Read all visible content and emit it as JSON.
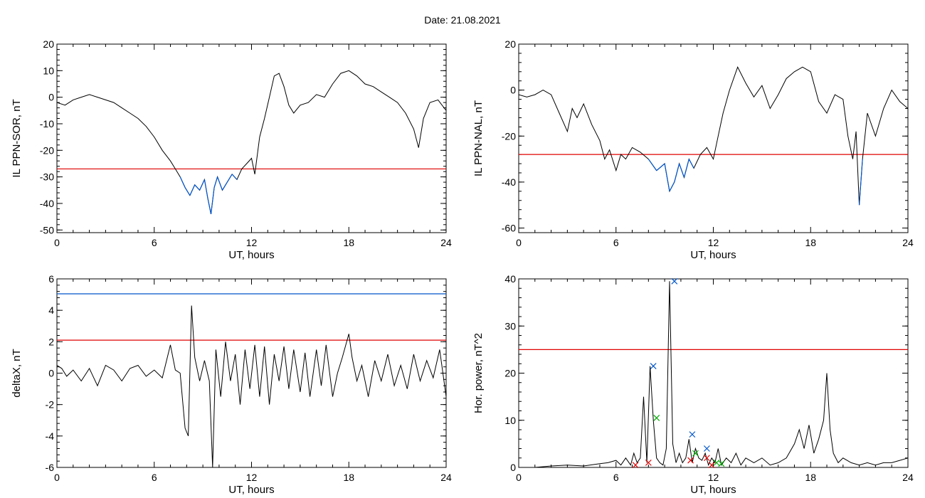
{
  "figure": {
    "title": "Date:  21.08.2021"
  },
  "chart_data": [
    {
      "type": "line",
      "xlabel": "UT, hours",
      "ylabel": "IL PPN-SOR, nT",
      "xlim": [
        0,
        24
      ],
      "ylim": [
        -51,
        20
      ],
      "xticks": [
        0,
        6,
        12,
        18,
        24
      ],
      "yticks": [
        20,
        10,
        0,
        -10,
        -20,
        -30,
        -40,
        -50
      ],
      "threshold": {
        "value": -27,
        "color": "#e00000"
      },
      "series": [
        {
          "color": "#000000",
          "below_color": "#0055cc",
          "x": [
            0,
            0.5,
            1,
            1.5,
            2,
            2.5,
            3,
            3.5,
            4,
            4.5,
            5,
            5.5,
            6,
            6.5,
            7,
            7.3,
            7.6,
            7.9,
            8.2,
            8.5,
            8.8,
            9.1,
            9.3,
            9.5,
            9.7,
            9.9,
            10.2,
            10.5,
            10.8,
            11.1,
            11.4,
            11.7,
            12,
            12.2,
            12.5,
            12.8,
            13.1,
            13.4,
            13.7,
            14,
            14.3,
            14.6,
            15,
            15.5,
            16,
            16.5,
            17,
            17.5,
            18,
            18.5,
            19,
            19.5,
            20,
            20.5,
            21,
            21.5,
            22,
            22.3,
            22.6,
            23,
            23.5,
            24
          ],
          "y": [
            -2,
            -3,
            -1,
            0,
            1,
            0,
            -1,
            -2,
            -4,
            -6,
            -8,
            -11,
            -15,
            -20,
            -24,
            -27,
            -30,
            -34,
            -37,
            -33,
            -35,
            -31,
            -38,
            -44,
            -34,
            -30,
            -35,
            -32,
            -29,
            -31,
            -27,
            -25,
            -23,
            -29,
            -15,
            -8,
            0,
            8,
            9,
            4,
            -3,
            -6,
            -3,
            -2,
            1,
            0,
            5,
            9,
            10,
            8,
            5,
            4,
            2,
            0,
            -2,
            -6,
            -12,
            -19,
            -8,
            -2,
            -1,
            -5
          ]
        }
      ]
    },
    {
      "type": "line",
      "xlabel": "UT, hours",
      "ylabel": "IL PPN-NAL, nT",
      "xlim": [
        0,
        24
      ],
      "ylim": [
        -62,
        20
      ],
      "xticks": [
        0,
        6,
        12,
        18,
        24
      ],
      "yticks": [
        20,
        0,
        -20,
        -40,
        -60
      ],
      "threshold": {
        "value": -28,
        "color": "#e00000"
      },
      "series": [
        {
          "color": "#000000",
          "below_color": "#0055cc",
          "x": [
            0,
            0.5,
            1,
            1.5,
            2,
            2.5,
            3,
            3.3,
            3.6,
            4,
            4.5,
            5,
            5.3,
            5.6,
            6,
            6.3,
            6.6,
            7,
            7.5,
            8,
            8.5,
            9,
            9.3,
            9.6,
            9.9,
            10.2,
            10.5,
            10.8,
            11.2,
            11.6,
            12,
            12.3,
            12.6,
            13,
            13.5,
            14,
            14.5,
            15,
            15.5,
            16,
            16.5,
            17,
            17.5,
            18,
            18.5,
            19,
            19.5,
            20,
            20.3,
            20.6,
            20.8,
            21,
            21.2,
            21.5,
            22,
            22.5,
            23,
            23.5,
            24
          ],
          "y": [
            -2,
            -3,
            -2,
            0,
            -2,
            -10,
            -18,
            -8,
            -12,
            -6,
            -15,
            -22,
            -30,
            -26,
            -35,
            -28,
            -30,
            -25,
            -27,
            -30,
            -35,
            -32,
            -44,
            -40,
            -32,
            -38,
            -30,
            -34,
            -28,
            -25,
            -30,
            -20,
            -10,
            0,
            10,
            3,
            -3,
            2,
            -8,
            -2,
            5,
            8,
            10,
            8,
            -5,
            -10,
            -2,
            -4,
            -20,
            -30,
            -18,
            -50,
            -30,
            -10,
            -20,
            -8,
            0,
            -5,
            -8
          ]
        }
      ]
    },
    {
      "type": "line",
      "xlabel": "UT, hours",
      "ylabel": "deltaX, nT",
      "xlim": [
        0,
        24
      ],
      "ylim": [
        -6,
        6
      ],
      "xticks": [
        0,
        6,
        12,
        18,
        24
      ],
      "yticks": [
        6,
        4,
        2,
        0,
        -2,
        -4,
        -6
      ],
      "threshold": {
        "value": 2.1,
        "color": "#e00000"
      },
      "threshold2": {
        "value": 5.05,
        "color": "#0055cc"
      },
      "series": [
        {
          "color": "#000000",
          "x": [
            0,
            0.3,
            0.6,
            1,
            1.5,
            2,
            2.5,
            3,
            3.5,
            4,
            4.5,
            5,
            5.5,
            6,
            6.5,
            7,
            7.3,
            7.6,
            7.9,
            8.1,
            8.3,
            8.5,
            8.8,
            9.1,
            9.4,
            9.6,
            9.8,
            10.1,
            10.4,
            10.7,
            11,
            11.3,
            11.6,
            11.9,
            12.2,
            12.5,
            12.8,
            13.1,
            13.4,
            13.7,
            14,
            14.3,
            14.6,
            15,
            15.3,
            15.6,
            16,
            16.3,
            16.6,
            17,
            17.3,
            17.6,
            18,
            18.2,
            18.5,
            18.8,
            19.2,
            19.6,
            20,
            20.4,
            20.8,
            21.2,
            21.6,
            22,
            22.4,
            22.8,
            23.2,
            23.6,
            24
          ],
          "y": [
            0.5,
            0.3,
            -0.2,
            0.2,
            -0.5,
            0.3,
            -0.8,
            0.5,
            0.2,
            -0.5,
            0.3,
            0.5,
            -0.2,
            0.2,
            -0.3,
            1.8,
            0.2,
            0,
            -3.5,
            -4,
            4.3,
            1,
            -0.5,
            0.8,
            -0.5,
            -6,
            1.5,
            -1.5,
            2,
            -0.5,
            1.2,
            -2,
            1.5,
            -1,
            1.8,
            -1.5,
            1.7,
            -2,
            1.2,
            -0.5,
            1.7,
            -1,
            1.5,
            -1.2,
            1.3,
            -1.5,
            1.5,
            -0.8,
            1.8,
            -1.5,
            0,
            1,
            2.5,
            1,
            -0.5,
            0.5,
            -1.5,
            0.8,
            -0.5,
            1.2,
            -0.8,
            0.5,
            -1,
            1.2,
            -0.5,
            0.8,
            -0.3,
            1.5,
            -1.5
          ]
        }
      ]
    },
    {
      "type": "line",
      "xlabel": "UT, hours",
      "ylabel": "Hor. power, nT^2",
      "xlim": [
        0,
        24
      ],
      "ylim": [
        0,
        40
      ],
      "xticks": [
        0,
        6,
        12,
        18,
        24
      ],
      "yticks": [
        40,
        30,
        20,
        10,
        0
      ],
      "threshold": {
        "value": 25,
        "color": "#e00000"
      },
      "series": [
        {
          "color": "#000000",
          "x": [
            0,
            1,
            2,
            3,
            4,
            5,
            5.5,
            6,
            6.3,
            6.6,
            6.9,
            7.1,
            7.3,
            7.5,
            7.7,
            7.9,
            8.1,
            8.3,
            8.5,
            8.7,
            8.9,
            9.1,
            9.3,
            9.5,
            9.7,
            9.9,
            10.1,
            10.3,
            10.5,
            10.7,
            10.9,
            11.1,
            11.3,
            11.5,
            11.7,
            11.9,
            12.1,
            12.3,
            12.5,
            12.8,
            13.1,
            13.4,
            13.7,
            14,
            14.5,
            15,
            15.5,
            16,
            16.5,
            17,
            17.3,
            17.6,
            17.9,
            18.2,
            18.5,
            18.8,
            19,
            19.2,
            19.4,
            19.7,
            20,
            20.5,
            21,
            21.5,
            22,
            22.5,
            23,
            23.5,
            24
          ],
          "y": [
            0,
            0,
            0.3,
            0.5,
            0.3,
            0.8,
            1,
            1.5,
            0.5,
            2,
            0.5,
            3,
            1,
            2,
            15,
            1,
            21.5,
            10,
            2,
            1,
            0.5,
            4,
            39.5,
            5,
            1,
            3,
            1,
            2,
            6,
            1,
            4,
            2,
            1.5,
            3,
            0.5,
            2,
            1,
            4,
            0.5,
            2,
            1,
            3,
            0.5,
            2,
            1,
            2,
            0.5,
            1,
            2,
            5,
            8,
            4,
            9,
            3,
            6,
            10,
            20,
            8,
            3,
            1,
            2,
            1,
            0.5,
            1,
            0.5,
            1,
            1,
            1.5,
            2
          ]
        }
      ],
      "markers": [
        {
          "x": 7.2,
          "y": 0.5,
          "color": "#e00000"
        },
        {
          "x": 8.0,
          "y": 1.0,
          "color": "#e00000"
        },
        {
          "x": 8.3,
          "y": 21.5,
          "color": "#0055cc"
        },
        {
          "x": 8.5,
          "y": 10.5,
          "color": "#00aa00"
        },
        {
          "x": 9.6,
          "y": 39.5,
          "color": "#0055cc"
        },
        {
          "x": 10.7,
          "y": 7.0,
          "color": "#0055cc"
        },
        {
          "x": 10.6,
          "y": 1.5,
          "color": "#e00000"
        },
        {
          "x": 10.9,
          "y": 3.0,
          "color": "#00aa00"
        },
        {
          "x": 11.6,
          "y": 4.0,
          "color": "#0055cc"
        },
        {
          "x": 11.6,
          "y": 2.0,
          "color": "#e00000"
        },
        {
          "x": 11.9,
          "y": 0.5,
          "color": "#e00000"
        },
        {
          "x": 12.2,
          "y": 1.0,
          "color": "#00aa00"
        },
        {
          "x": 12.5,
          "y": 0.8,
          "color": "#00aa00"
        }
      ]
    }
  ]
}
